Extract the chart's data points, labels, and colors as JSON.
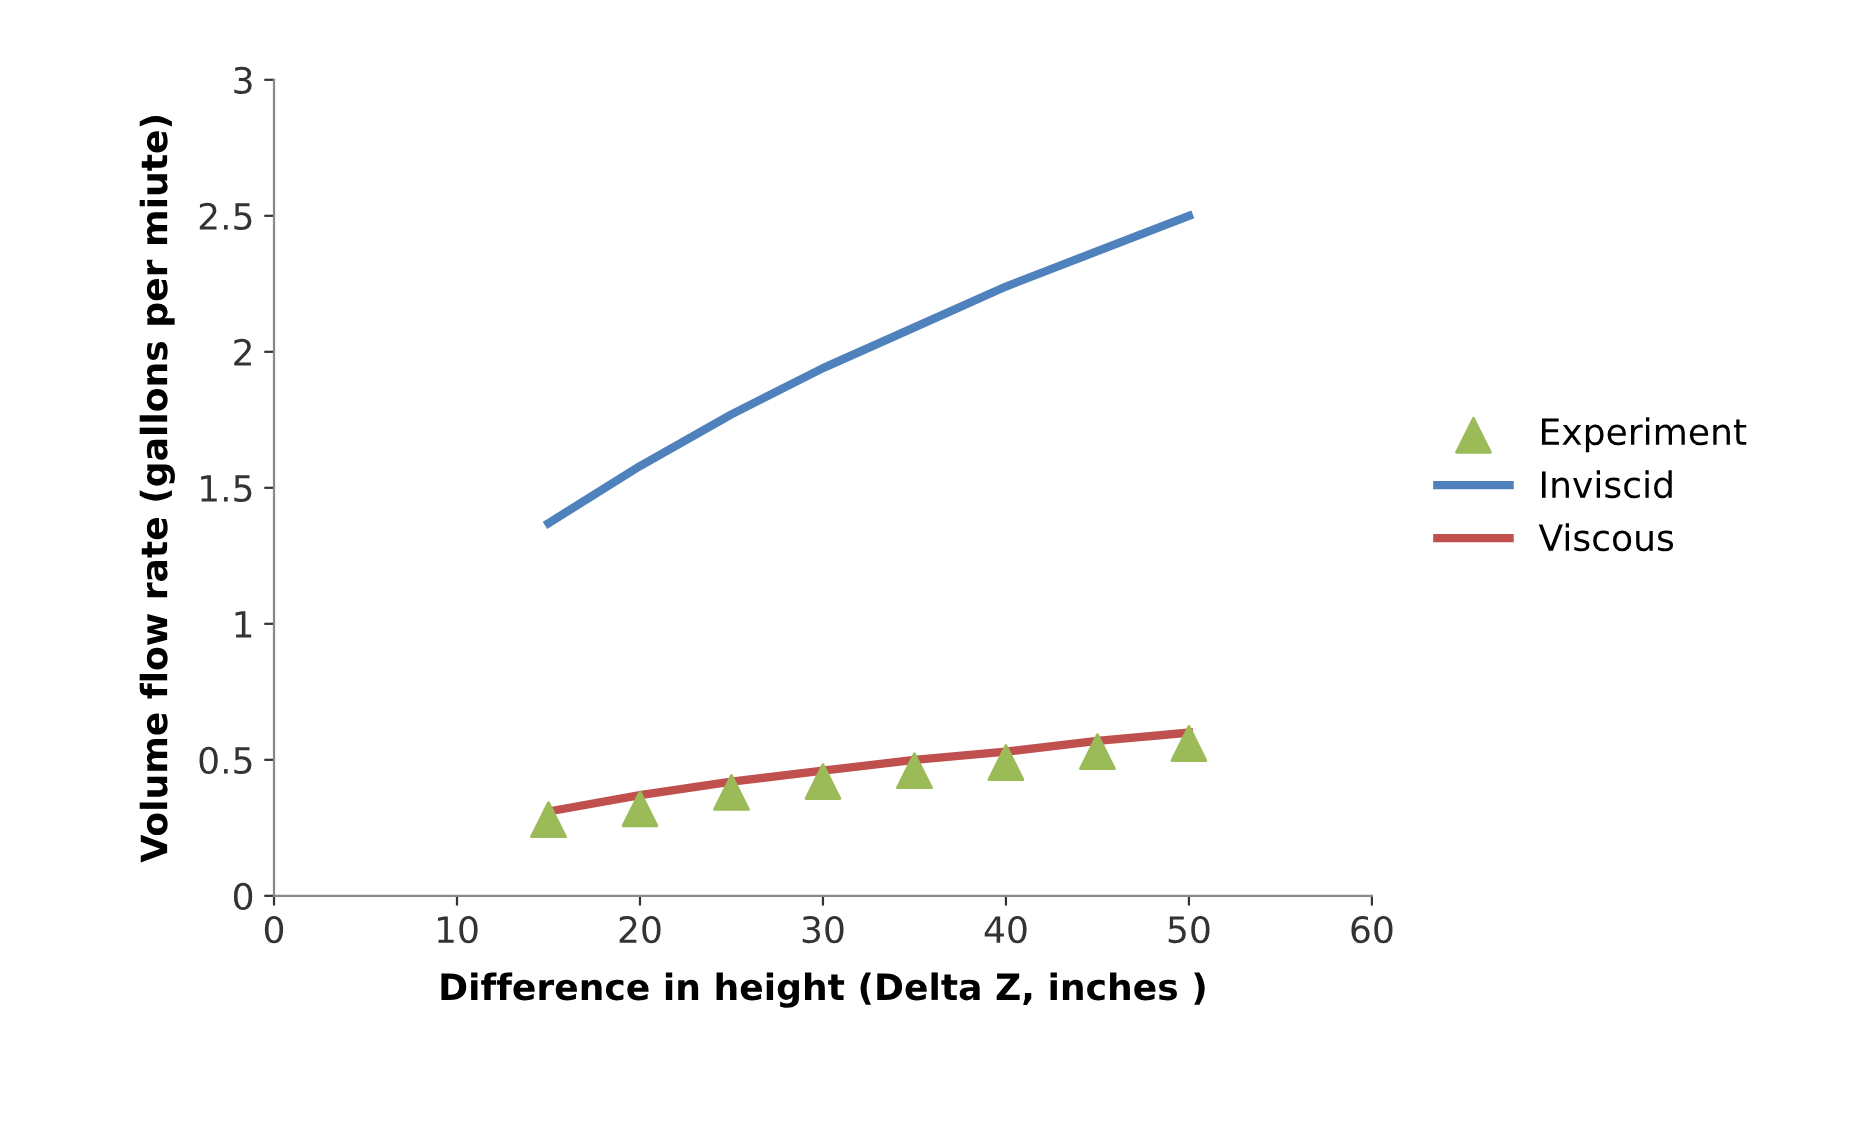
{
  "chart_data": {
    "type": "line",
    "xlabel": "Difference in height (Delta Z, inches )",
    "ylabel": "Volume flow rate (gallons per miute)",
    "x": [
      15,
      20,
      25,
      30,
      35,
      40,
      45,
      50
    ],
    "series": [
      {
        "name": "Experiment",
        "type": "scatter",
        "marker": "triangle",
        "color": "#9bbb59",
        "values": [
          0.28,
          0.32,
          0.38,
          0.42,
          0.46,
          0.49,
          0.53,
          0.56
        ]
      },
      {
        "name": "Inviscid",
        "color": "#4f81bd",
        "values": [
          1.37,
          1.58,
          1.77,
          1.94,
          2.09,
          2.24,
          2.37,
          2.5
        ]
      },
      {
        "name": "Viscous",
        "color": "#c0504d",
        "values": [
          0.31,
          0.37,
          0.42,
          0.46,
          0.5,
          0.53,
          0.57,
          0.6
        ]
      }
    ],
    "xlim": [
      0,
      60
    ],
    "xticks": [
      0,
      10,
      20,
      30,
      40,
      50,
      60
    ],
    "ylim": [
      0,
      3
    ],
    "yticks": [
      0,
      {
        "value": 0.5,
        "label": "0.5"
      },
      1,
      {
        "value": 1.5,
        "label": "1.5"
      },
      2,
      {
        "value": 2.5,
        "label": "2.5"
      },
      3
    ],
    "grid": false,
    "legend": "right"
  }
}
